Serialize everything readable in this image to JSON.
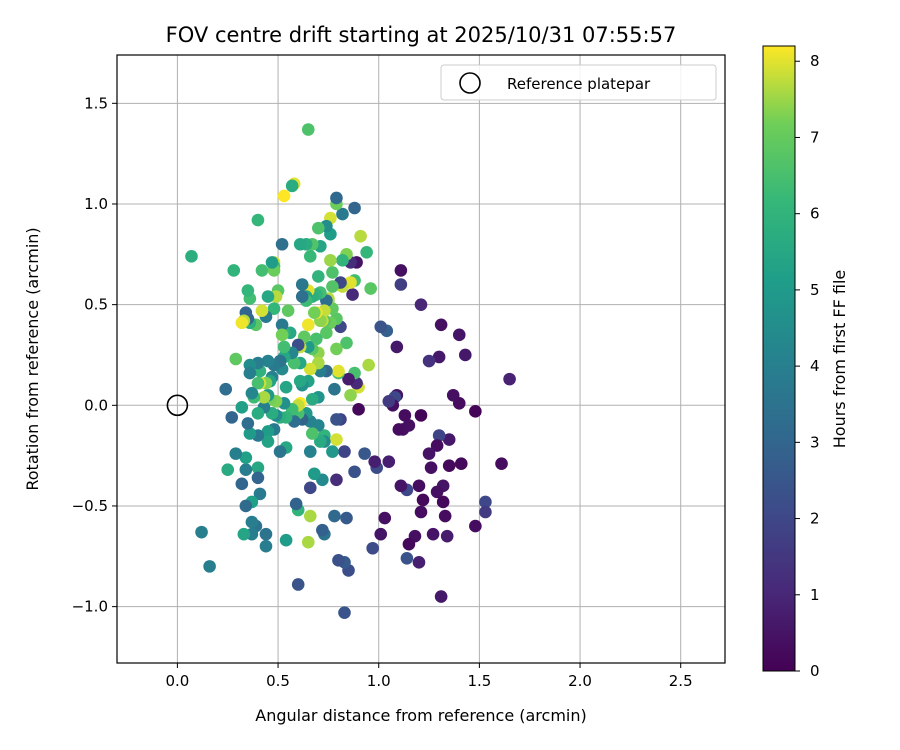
{
  "chart_data": {
    "type": "scatter",
    "title": "FOV centre drift starting at 2025/10/31 07:55:57",
    "xlabel": "Angular distance from reference (arcmin)",
    "ylabel": "Rotation from reference (arcmin)",
    "xlim": [
      -0.3,
      2.72
    ],
    "ylim": [
      -1.28,
      1.74
    ],
    "xticks": [
      0.0,
      0.5,
      1.0,
      1.5,
      2.0,
      2.5
    ],
    "yticks": [
      -1.0,
      -0.5,
      0.0,
      0.5,
      1.0,
      1.5
    ],
    "xtick_labels": [
      "0.0",
      "0.5",
      "1.0",
      "1.5",
      "2.0",
      "2.5"
    ],
    "ytick_labels": [
      "−1.0",
      "−0.5",
      "0.0",
      "0.5",
      "1.0",
      "1.5"
    ],
    "grid": true,
    "legend": {
      "placement": "top-right",
      "entries": [
        {
          "label": "Reference platepar",
          "marker": "open-circle"
        }
      ]
    },
    "reference_point": {
      "x": 0.0,
      "y": 0.0
    },
    "colorbar": {
      "label": "Hours from first FF file",
      "colormap": "viridis",
      "range": [
        0,
        8.2
      ],
      "ticks": [
        0,
        1,
        2,
        3,
        4,
        5,
        6,
        7,
        8
      ],
      "tick_labels": [
        "0",
        "1",
        "2",
        "3",
        "4",
        "5",
        "6",
        "7",
        "8"
      ]
    },
    "points": [
      [
        1.65,
        0.13,
        0.9
      ],
      [
        1.61,
        -0.29,
        0.3
      ],
      [
        1.53,
        -0.48,
        2.0
      ],
      [
        1.53,
        -0.53,
        1.6
      ],
      [
        1.48,
        -0.6,
        0.3
      ],
      [
        1.48,
        -0.03,
        0.1
      ],
      [
        1.43,
        0.25,
        0.6
      ],
      [
        1.41,
        -0.29,
        0.2
      ],
      [
        1.4,
        0.35,
        0.5
      ],
      [
        1.4,
        0.01,
        0.3
      ],
      [
        1.37,
        0.05,
        0.4
      ],
      [
        1.35,
        -0.17,
        0.6
      ],
      [
        1.35,
        -0.3,
        0.2
      ],
      [
        1.34,
        -0.65,
        0.7
      ],
      [
        1.33,
        -0.55,
        0.3
      ],
      [
        1.32,
        -0.48,
        0.2
      ],
      [
        1.32,
        -0.4,
        0.5
      ],
      [
        1.31,
        0.4,
        0.4
      ],
      [
        1.31,
        -0.95,
        0.6
      ],
      [
        1.3,
        0.24,
        0.6
      ],
      [
        1.3,
        -0.15,
        1.9
      ],
      [
        1.29,
        -0.2,
        0.3
      ],
      [
        1.29,
        -0.43,
        0.4
      ],
      [
        1.27,
        -0.64,
        0.5
      ],
      [
        1.26,
        -0.31,
        0.4
      ],
      [
        1.25,
        -0.24,
        0.5
      ],
      [
        1.25,
        0.22,
        1.3
      ],
      [
        1.22,
        -0.47,
        0.2
      ],
      [
        1.21,
        -0.05,
        0.1
      ],
      [
        1.21,
        0.5,
        1.0
      ],
      [
        1.21,
        -0.53,
        0.3
      ],
      [
        1.2,
        -0.4,
        0.3
      ],
      [
        1.2,
        -0.78,
        0.8
      ],
      [
        1.18,
        -0.65,
        0.4
      ],
      [
        1.15,
        -0.69,
        0.2
      ],
      [
        1.15,
        -0.1,
        0.4
      ],
      [
        1.14,
        -0.42,
        2.0
      ],
      [
        1.14,
        -0.76,
        2.4
      ],
      [
        1.13,
        -0.05,
        0.3
      ],
      [
        1.12,
        -0.12,
        0.4
      ],
      [
        1.11,
        -0.4,
        0.5
      ],
      [
        1.11,
        0.67,
        0.4
      ],
      [
        1.11,
        0.6,
        1.7
      ],
      [
        1.1,
        -0.12,
        0.3
      ],
      [
        1.09,
        0.29,
        0.6
      ],
      [
        1.09,
        0.05,
        0.5
      ],
      [
        1.08,
        0.04,
        2.0
      ],
      [
        1.07,
        0.0,
        0.4
      ],
      [
        1.05,
        0.02,
        1.6
      ],
      [
        1.05,
        -0.28,
        0.8
      ],
      [
        1.04,
        0.37,
        2.8
      ],
      [
        1.03,
        -0.56,
        0.4
      ],
      [
        1.01,
        0.39,
        2.4
      ],
      [
        1.01,
        -0.64,
        0.5
      ],
      [
        0.99,
        -0.31,
        2.1
      ],
      [
        0.98,
        -0.28,
        0.8
      ],
      [
        0.97,
        -0.71,
        2.1
      ],
      [
        0.96,
        0.58,
        6.8
      ],
      [
        0.95,
        0.2,
        7.6
      ],
      [
        0.94,
        0.76,
        6.1
      ],
      [
        0.93,
        -0.24,
        2.5
      ],
      [
        0.91,
        0.84,
        7.7
      ],
      [
        0.9,
        0.09,
        7.9
      ],
      [
        0.9,
        -0.02,
        0.2
      ],
      [
        0.89,
        0.71,
        0.5
      ],
      [
        0.89,
        0.11,
        1.1
      ],
      [
        0.88,
        0.16,
        6.5
      ],
      [
        0.88,
        0.98,
        3.0
      ],
      [
        0.88,
        0.62,
        6.4
      ],
      [
        0.88,
        -0.33,
        2.3
      ],
      [
        0.87,
        0.55,
        1.1
      ],
      [
        0.86,
        0.71,
        1.2
      ],
      [
        0.86,
        0.05,
        7.4
      ],
      [
        0.86,
        0.61,
        8.0
      ],
      [
        0.85,
        -0.82,
        2.2
      ],
      [
        0.85,
        0.13,
        0.7
      ],
      [
        0.84,
        0.31,
        6.6
      ],
      [
        0.84,
        0.75,
        7.3
      ],
      [
        0.84,
        -0.56,
        2.6
      ],
      [
        0.83,
        -1.03,
        2.4
      ],
      [
        0.83,
        -0.78,
        2.6
      ],
      [
        0.83,
        -0.23,
        1.9
      ],
      [
        0.82,
        0.72,
        6.0
      ],
      [
        0.82,
        0.95,
        3.8
      ],
      [
        0.82,
        0.59,
        7.8
      ],
      [
        0.81,
        0.39,
        2.0
      ],
      [
        0.81,
        -0.07,
        1.9
      ],
      [
        0.81,
        0.61,
        2.0
      ],
      [
        0.8,
        0.16,
        6.5
      ],
      [
        0.8,
        -0.77,
        2.3
      ],
      [
        0.8,
        0.17,
        8.0
      ],
      [
        0.79,
        -0.37,
        1.2
      ],
      [
        0.79,
        0.43,
        6.8
      ],
      [
        0.79,
        -0.07,
        2.4
      ],
      [
        0.79,
        -0.17,
        7.9
      ],
      [
        0.79,
        1.0,
        7.1
      ],
      [
        0.79,
        0.28,
        7.2
      ],
      [
        0.79,
        1.03,
        3.1
      ],
      [
        0.78,
        0.08,
        3.5
      ],
      [
        0.78,
        -0.55,
        3.1
      ],
      [
        0.77,
        0.66,
        6.6
      ],
      [
        0.77,
        0.59,
        6.7
      ],
      [
        0.77,
        0.48,
        6.9
      ],
      [
        0.77,
        -0.23,
        4.9
      ],
      [
        0.76,
        0.41,
        7.1
      ],
      [
        0.76,
        0.85,
        5.1
      ],
      [
        0.76,
        0.72,
        7.5
      ],
      [
        0.76,
        0.93,
        7.9
      ],
      [
        0.75,
        0.52,
        7.2
      ],
      [
        0.75,
        0.53,
        7.7
      ],
      [
        0.74,
        0.89,
        4.5
      ],
      [
        0.74,
        0.52,
        3.3
      ],
      [
        0.74,
        0.36,
        6.8
      ],
      [
        0.74,
        0.17,
        3.1
      ],
      [
        0.73,
        0.42,
        6.7
      ],
      [
        0.73,
        -0.15,
        6.0
      ],
      [
        0.73,
        -0.18,
        4.5
      ],
      [
        0.73,
        -0.64,
        3.5
      ],
      [
        0.73,
        0.47,
        7.8
      ],
      [
        0.72,
        -0.62,
        2.8
      ],
      [
        0.72,
        -0.37,
        4.4
      ],
      [
        0.72,
        0.42,
        7.8
      ],
      [
        0.71,
        0.79,
        5.4
      ],
      [
        0.71,
        0.56,
        6.4
      ],
      [
        0.71,
        0.17,
        4.0
      ],
      [
        0.71,
        0.42,
        7.4
      ],
      [
        0.71,
        -0.18,
        5.6
      ],
      [
        0.7,
        0.64,
        6.0
      ],
      [
        0.7,
        0.88,
        6.6
      ],
      [
        0.7,
        0.26,
        7.4
      ],
      [
        0.7,
        0.04,
        4.8
      ],
      [
        0.7,
        -0.1,
        4.2
      ],
      [
        0.7,
        0.21,
        7.6
      ],
      [
        0.69,
        0.46,
        8.1
      ],
      [
        0.69,
        0.55,
        6.0
      ],
      [
        0.69,
        0.33,
        6.5
      ],
      [
        0.68,
        -0.34,
        5.0
      ],
      [
        0.68,
        0.46,
        7.2
      ],
      [
        0.67,
        -0.14,
        6.6
      ],
      [
        0.67,
        0.8,
        6.7
      ],
      [
        0.67,
        0.28,
        6.8
      ],
      [
        0.67,
        0.03,
        5.6
      ],
      [
        0.67,
        0.54,
        5.8
      ],
      [
        0.66,
        0.18,
        7.9
      ],
      [
        0.66,
        -0.41,
        2.0
      ],
      [
        0.66,
        0.74,
        6.2
      ],
      [
        0.66,
        -0.08,
        4.1
      ],
      [
        0.66,
        -0.23,
        4.1
      ],
      [
        0.66,
        -0.55,
        7.6
      ],
      [
        0.65,
        0.12,
        5.3
      ],
      [
        0.65,
        0.4,
        8.1
      ],
      [
        0.65,
        0.29,
        5.0
      ],
      [
        0.65,
        0.57,
        8.0
      ],
      [
        0.65,
        1.37,
        6.6
      ],
      [
        0.65,
        -0.68,
        7.6
      ],
      [
        0.64,
        0.8,
        5.7
      ],
      [
        0.64,
        0.54,
        5.4
      ],
      [
        0.64,
        -0.04,
        4.9
      ],
      [
        0.64,
        0.52,
        6.3
      ],
      [
        0.63,
        0.34,
        6.9
      ],
      [
        0.62,
        -0.07,
        2.9
      ],
      [
        0.62,
        0.6,
        3.7
      ],
      [
        0.62,
        0.1,
        4.6
      ],
      [
        0.62,
        0.54,
        3.4
      ],
      [
        0.61,
        0.12,
        5.5
      ],
      [
        0.61,
        0.21,
        5.5
      ],
      [
        0.61,
        0.29,
        7.8
      ],
      [
        0.61,
        0.01,
        8.2
      ],
      [
        0.61,
        0.8,
        5.5
      ],
      [
        0.6,
        -0.52,
        6.0
      ],
      [
        0.6,
        -0.04,
        6.5
      ],
      [
        0.6,
        0.0,
        7.8
      ],
      [
        0.6,
        -0.89,
        2.4
      ],
      [
        0.6,
        0.3,
        2.2
      ],
      [
        0.59,
        -0.49,
        2.9
      ],
      [
        0.58,
        0.21,
        6.5
      ],
      [
        0.58,
        1.1,
        8.0
      ],
      [
        0.58,
        -0.08,
        3.3
      ],
      [
        0.57,
        -0.02,
        6.3
      ],
      [
        0.57,
        0.26,
        4.3
      ],
      [
        0.57,
        1.09,
        5.7
      ],
      [
        0.56,
        0.36,
        5.5
      ],
      [
        0.55,
        0.47,
        6.9
      ],
      [
        0.54,
        0.09,
        5.4
      ],
      [
        0.54,
        -0.06,
        6.0
      ],
      [
        0.54,
        -0.21,
        5.5
      ],
      [
        0.54,
        -0.67,
        5.1
      ],
      [
        0.53,
        1.04,
        8.2
      ],
      [
        0.53,
        0.24,
        5.5
      ],
      [
        0.53,
        0.29,
        6.4
      ],
      [
        0.53,
        0.36,
        6.0
      ],
      [
        0.53,
        0.01,
        4.6
      ],
      [
        0.52,
        0.8,
        3.4
      ],
      [
        0.52,
        0.18,
        4.4
      ],
      [
        0.52,
        0.4,
        3.8
      ],
      [
        0.52,
        0.35,
        7.2
      ],
      [
        0.51,
        -0.23,
        3.6
      ],
      [
        0.51,
        -0.06,
        5.8
      ],
      [
        0.51,
        0.22,
        3.5
      ],
      [
        0.5,
        0.57,
        6.8
      ],
      [
        0.49,
        -0.05,
        4.4
      ],
      [
        0.49,
        0.54,
        7.7
      ],
      [
        0.49,
        0.02,
        7.3
      ],
      [
        0.48,
        0.71,
        7.9
      ],
      [
        0.48,
        0.69,
        6.5
      ],
      [
        0.48,
        0.2,
        3.8
      ],
      [
        0.48,
        -0.12,
        3.8
      ],
      [
        0.48,
        0.48,
        6.1
      ],
      [
        0.48,
        0.67,
        7.1
      ],
      [
        0.47,
        -0.04,
        5.7
      ],
      [
        0.47,
        0.71,
        5.1
      ],
      [
        0.47,
        0.14,
        4.1
      ],
      [
        0.46,
        0.12,
        5.3
      ],
      [
        0.46,
        0.03,
        7.2
      ],
      [
        0.45,
        0.54,
        5.5
      ],
      [
        0.45,
        0.22,
        4.1
      ],
      [
        0.45,
        -0.13,
        5.1
      ],
      [
        0.45,
        -0.18,
        5.3
      ],
      [
        0.45,
        0.05,
        4.9
      ],
      [
        0.44,
        -0.64,
        3.5
      ],
      [
        0.44,
        0.44,
        3.8
      ],
      [
        0.44,
        -0.7,
        3.9
      ],
      [
        0.44,
        0.11,
        7.3
      ],
      [
        0.43,
        -0.01,
        4.0
      ],
      [
        0.43,
        0.04,
        7.6
      ],
      [
        0.42,
        0.47,
        7.9
      ],
      [
        0.42,
        0.67,
        6.4
      ],
      [
        0.41,
        0.11,
        7.9
      ],
      [
        0.41,
        -0.44,
        3.8
      ],
      [
        0.41,
        0.17,
        5.9
      ],
      [
        0.4,
        0.92,
        6.1
      ],
      [
        0.4,
        -0.31,
        5.5
      ],
      [
        0.4,
        0.21,
        3.9
      ],
      [
        0.4,
        0.11,
        6.5
      ],
      [
        0.4,
        -0.36,
        3.0
      ],
      [
        0.4,
        -0.04,
        5.7
      ],
      [
        0.4,
        -0.15,
        3.7
      ],
      [
        0.39,
        -0.6,
        3.5
      ],
      [
        0.39,
        0.4,
        6.8
      ],
      [
        0.38,
        0.04,
        6.3
      ],
      [
        0.37,
        0.06,
        4.3
      ],
      [
        0.37,
        -0.64,
        3.9
      ],
      [
        0.37,
        -0.58,
        3.9
      ],
      [
        0.37,
        -0.48,
        5.2
      ],
      [
        0.36,
        0.2,
        4.5
      ],
      [
        0.36,
        0.16,
        4.0
      ],
      [
        0.36,
        -0.14,
        5.0
      ],
      [
        0.36,
        0.53,
        6.4
      ],
      [
        0.36,
        0.41,
        5.8
      ],
      [
        0.35,
        -0.09,
        3.3
      ],
      [
        0.35,
        0.43,
        7.8
      ],
      [
        0.35,
        0.43,
        3.1
      ],
      [
        0.35,
        0.57,
        6.1
      ],
      [
        0.34,
        -0.32,
        3.9
      ],
      [
        0.34,
        -0.5,
        3.2
      ],
      [
        0.34,
        0.46,
        3.0
      ],
      [
        0.34,
        -0.26,
        5.2
      ],
      [
        0.33,
        0.42,
        7.7
      ],
      [
        0.33,
        -0.64,
        5.4
      ],
      [
        0.32,
        0.41,
        8.1
      ],
      [
        0.32,
        -0.01,
        5.2
      ],
      [
        0.32,
        -0.39,
        3.0
      ],
      [
        0.29,
        -0.24,
        4.0
      ],
      [
        0.29,
        0.23,
        6.9
      ],
      [
        0.28,
        0.67,
        6.0
      ],
      [
        0.27,
        -0.06,
        3.0
      ],
      [
        0.25,
        -0.32,
        5.6
      ],
      [
        0.24,
        0.08,
        3.3
      ],
      [
        0.16,
        -0.8,
        4.0
      ],
      [
        0.12,
        -0.63,
        4.0
      ],
      [
        0.07,
        0.74,
        5.8
      ]
    ]
  }
}
